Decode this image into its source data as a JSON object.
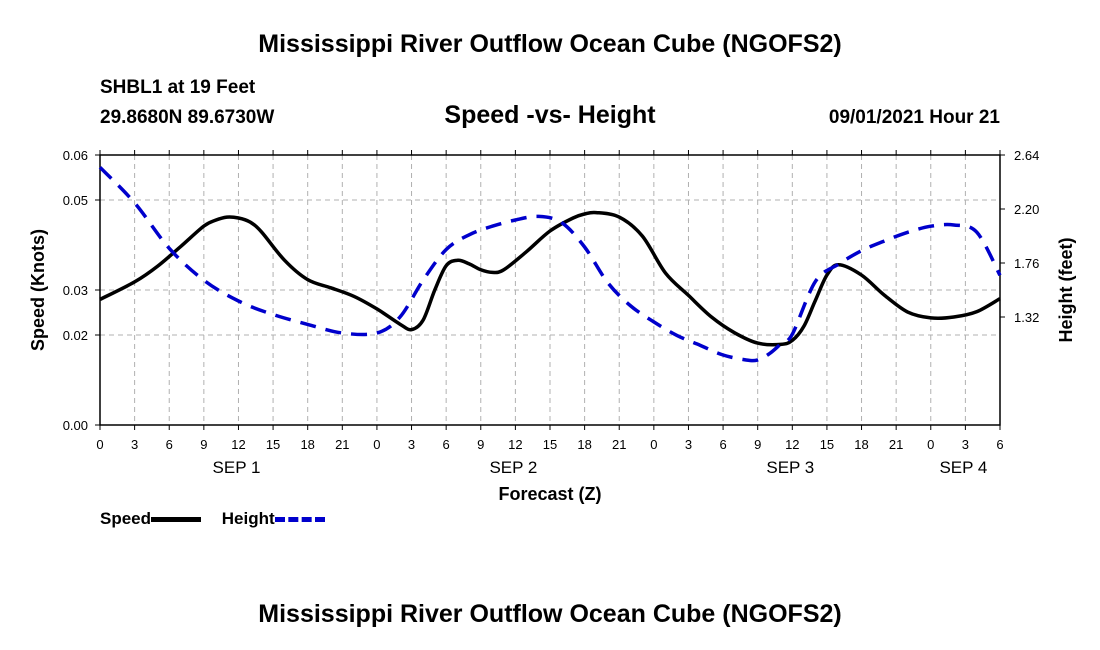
{
  "header": {
    "title": "Mississippi River Outflow Ocean Cube (NGOFS2)",
    "station": "SHBL1 at 19 Feet",
    "coords": "29.8680N  89.6730W",
    "chart_title": "Speed -vs- Height",
    "datetime": "09/01/2021 Hour 21"
  },
  "footer": {
    "title": "Mississippi River Outflow Ocean Cube (NGOFS2)"
  },
  "legend": {
    "speed": "Speed",
    "height": "Height"
  },
  "colors": {
    "speed": "#000000",
    "height": "#0000cc",
    "grid": "#b0b0b0"
  },
  "chart_data": {
    "type": "line",
    "title": "Speed -vs- Height",
    "xlabel": "Forecast (Z)",
    "ylabel_left": "Speed (Knots)",
    "ylabel_right": "Height (feet)",
    "x_range_hours": [
      0,
      78
    ],
    "x_tick_labels": [
      "0",
      "3",
      "6",
      "9",
      "12",
      "15",
      "18",
      "21",
      "0",
      "3",
      "6",
      "9",
      "12",
      "15",
      "18",
      "21",
      "0",
      "3",
      "6",
      "9",
      "12",
      "15",
      "18",
      "21",
      "0",
      "3",
      "6"
    ],
    "day_labels": [
      {
        "label": "SEP 1",
        "hour": 12
      },
      {
        "label": "SEP 2",
        "hour": 36
      },
      {
        "label": "SEP 3",
        "hour": 60
      },
      {
        "label": "SEP 4",
        "hour": 75
      }
    ],
    "ylim_left": [
      0.0,
      0.06
    ],
    "left_ticks": [
      0.0,
      0.02,
      0.03,
      0.05,
      0.06
    ],
    "left_tick_labels": [
      "0.00",
      "0.02",
      "0.03",
      "0.05",
      "0.06"
    ],
    "ylim_right": [
      0.44,
      2.64
    ],
    "right_ticks": [
      1.32,
      1.76,
      2.2,
      2.64
    ],
    "right_tick_labels": [
      "1.32",
      "1.76",
      "2.20",
      "2.64"
    ],
    "grid": true,
    "series": [
      {
        "name": "Speed",
        "axis": "left",
        "style": "solid",
        "x": [
          0,
          3,
          5,
          7,
          9,
          10,
          11,
          12,
          13,
          14,
          16,
          18,
          20,
          22,
          24,
          26,
          27,
          28,
          29,
          30,
          31,
          32,
          33,
          34,
          35,
          37,
          39,
          41,
          42,
          43,
          45,
          47,
          49,
          51,
          53,
          55,
          57,
          59,
          60,
          61,
          62,
          63,
          64,
          66,
          68,
          70,
          72,
          74,
          76,
          78
        ],
        "y": [
          0.0279,
          0.0318,
          0.0353,
          0.0397,
          0.0442,
          0.0455,
          0.0462,
          0.046,
          0.0451,
          0.0429,
          0.0366,
          0.0323,
          0.0305,
          0.0286,
          0.0258,
          0.0224,
          0.0212,
          0.0233,
          0.0299,
          0.0354,
          0.0366,
          0.0358,
          0.0345,
          0.0339,
          0.0345,
          0.0386,
          0.0431,
          0.046,
          0.0469,
          0.0472,
          0.0462,
          0.042,
          0.0338,
          0.0288,
          0.024,
          0.0205,
          0.0182,
          0.0179,
          0.0188,
          0.0219,
          0.0277,
          0.0333,
          0.0356,
          0.0333,
          0.0288,
          0.0251,
          0.0238,
          0.024,
          0.0252,
          0.0281
        ]
      },
      {
        "name": "Height",
        "axis": "right",
        "style": "dashed",
        "x": [
          0,
          3,
          6,
          9,
          12,
          15,
          18,
          21,
          24,
          26,
          28,
          30,
          32,
          34,
          36,
          38,
          40,
          42,
          44,
          46,
          48,
          50,
          52,
          54,
          56,
          57,
          58,
          59,
          60,
          62,
          64,
          66,
          68,
          70,
          72,
          74,
          76,
          78
        ],
        "y": [
          2.54,
          2.25,
          1.88,
          1.62,
          1.45,
          1.34,
          1.26,
          1.19,
          1.19,
          1.32,
          1.62,
          1.87,
          1.99,
          2.06,
          2.11,
          2.14,
          2.09,
          1.89,
          1.6,
          1.41,
          1.28,
          1.17,
          1.09,
          1.01,
          0.97,
          0.97,
          1.02,
          1.1,
          1.18,
          1.61,
          1.75,
          1.86,
          1.94,
          2.01,
          2.06,
          2.07,
          2.01,
          1.66
        ]
      }
    ]
  }
}
